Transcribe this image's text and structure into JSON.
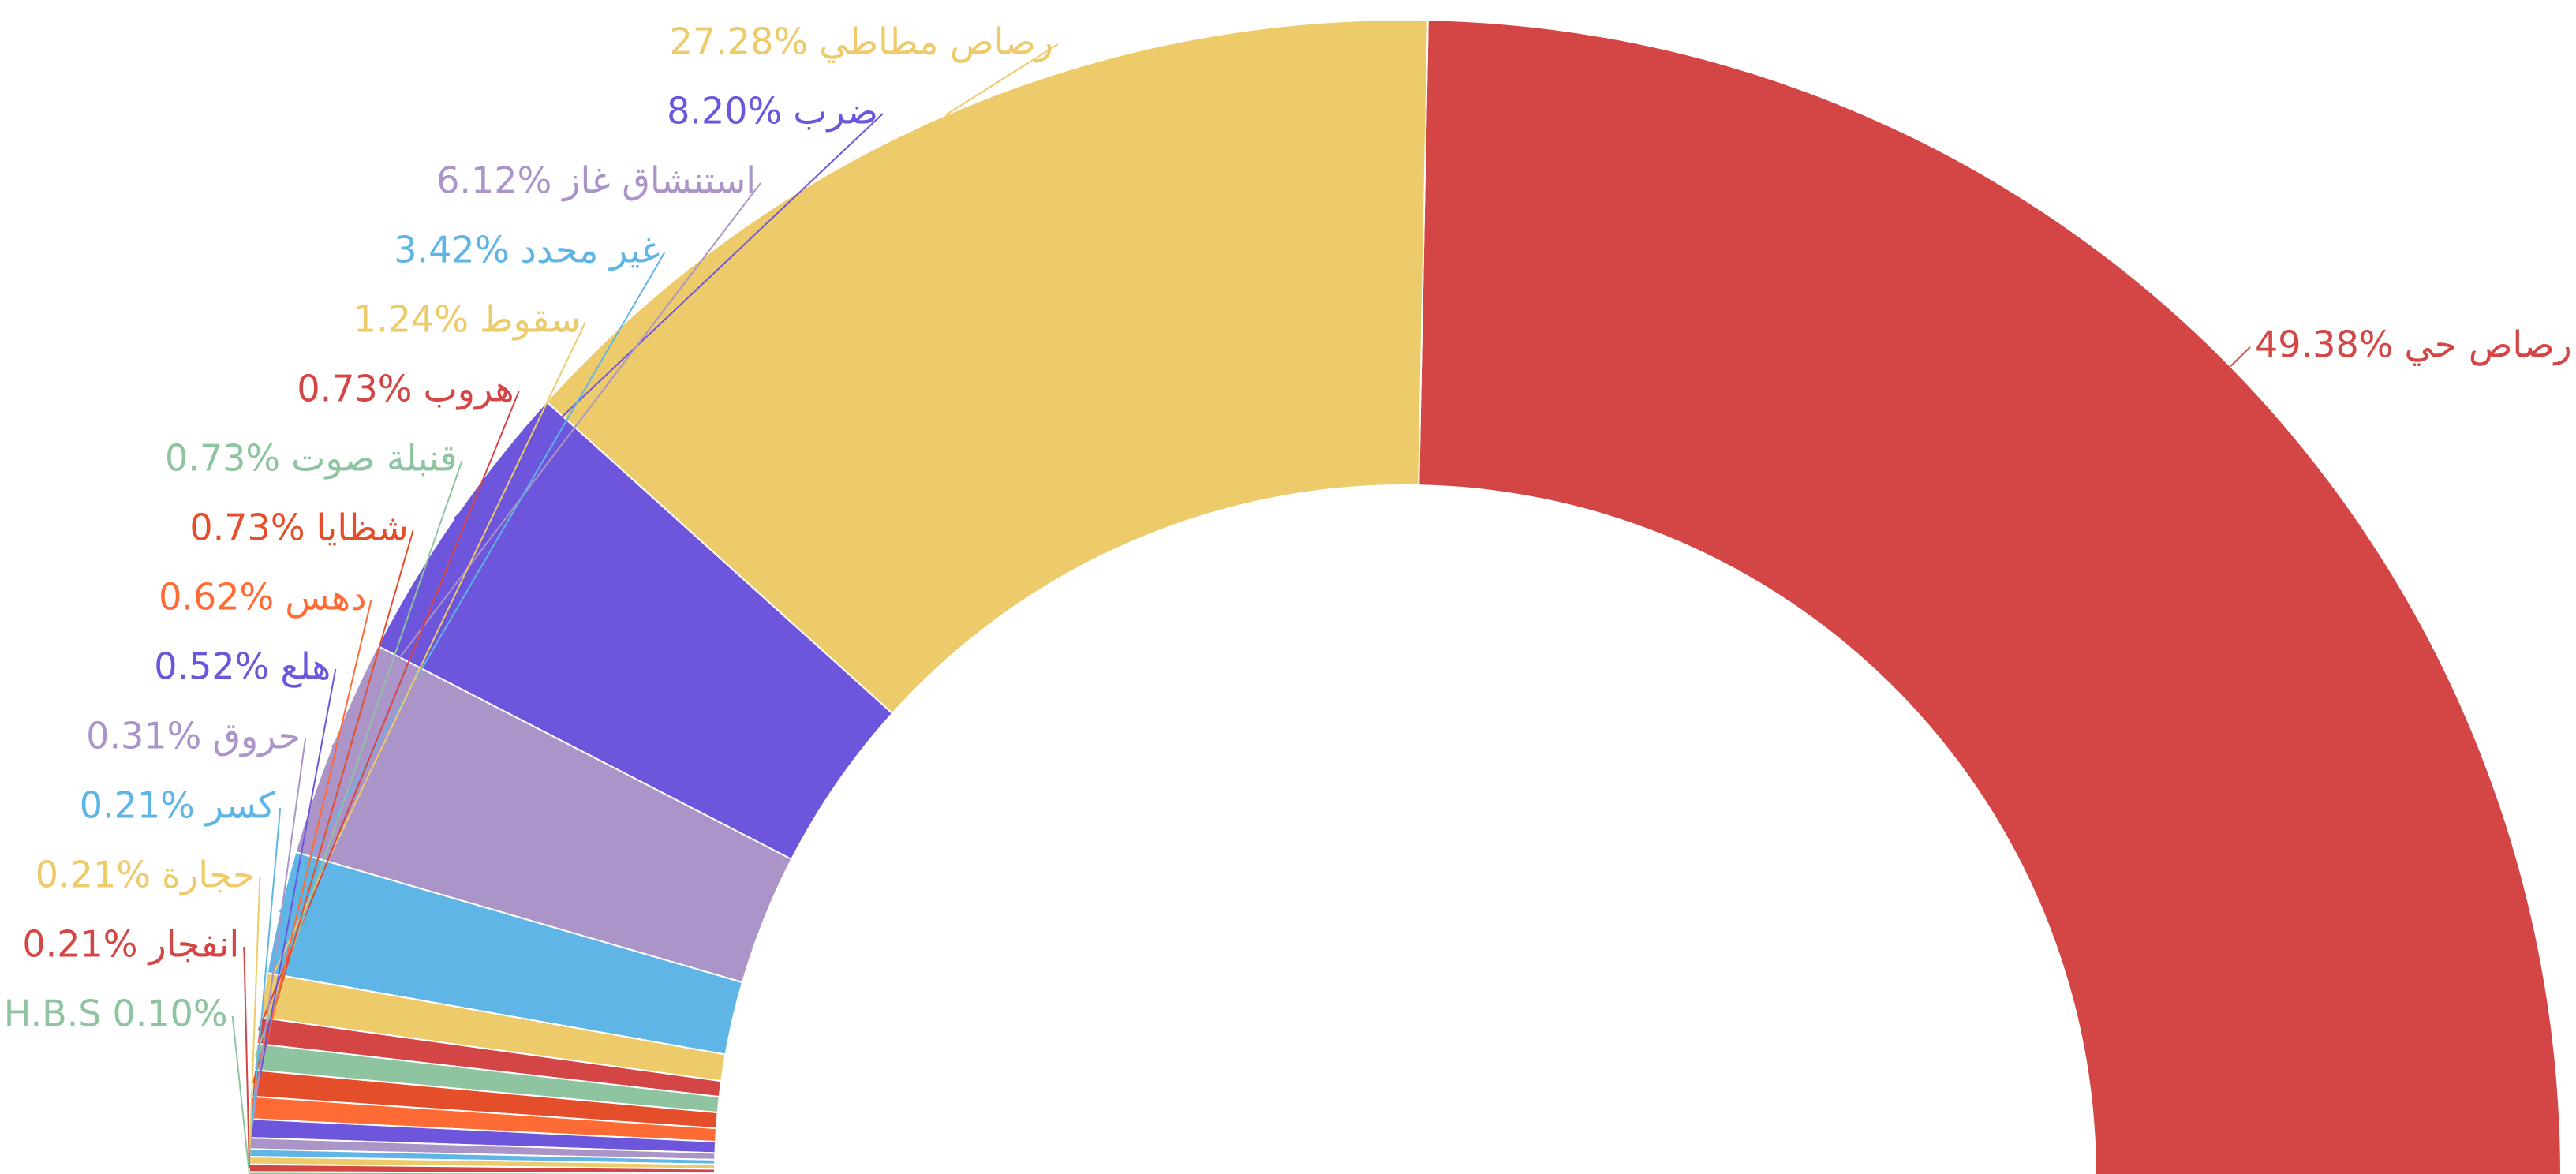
{
  "chart_data": {
    "type": "donut",
    "categories": [
      "رصاص حي",
      "رصاص مطاطي",
      "ضرب",
      "استنشاق غاز",
      "غير محدد",
      "سقوط",
      "هروب",
      "قنبلة صوت",
      "شظايا",
      "دهس",
      "هلع",
      "حروق",
      "كسر",
      "حجارة",
      "انفجار",
      "H.B.S"
    ],
    "values": [
      49.38,
      27.28,
      8.2,
      6.12,
      3.42,
      1.24,
      0.73,
      0.73,
      0.73,
      0.62,
      0.52,
      0.31,
      0.21,
      0.21,
      0.21,
      0.1
    ],
    "value_labels": [
      "49.38%",
      "27.28%",
      "8.20%",
      "6.12%",
      "3.42%",
      "1.24%",
      "0.73%",
      "0.73%",
      "0.73%",
      "0.62%",
      "0.52%",
      "0.31%",
      "0.21%",
      "0.21%",
      "0.21%",
      "0.10%"
    ],
    "colors": [
      "#d44545",
      "#eecb6a",
      "#6e56dc",
      "#ab94c8",
      "#5fb6e6",
      "#eecb6a",
      "#d44545",
      "#8ec5a0",
      "#e44e2a",
      "#ff6b35",
      "#6e56dc",
      "#ab94c8",
      "#5fb6e6",
      "#eecb6a",
      "#d44545",
      "#8ec5a0"
    ]
  }
}
